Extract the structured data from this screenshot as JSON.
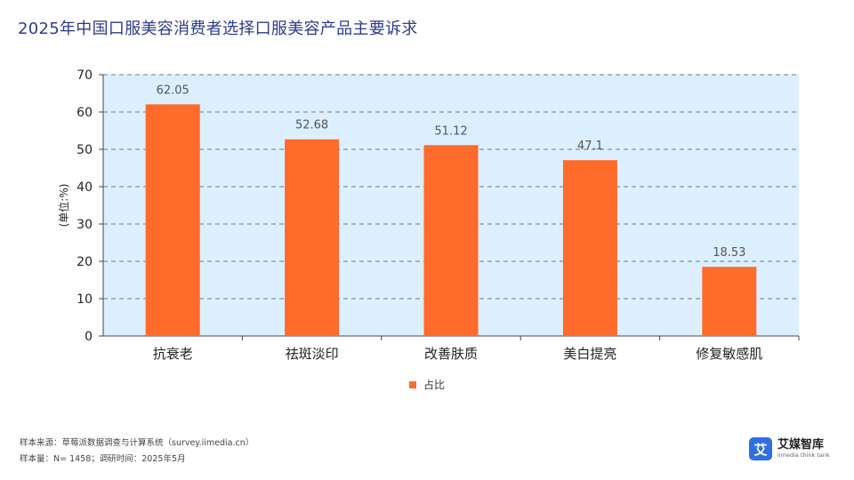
{
  "title": "2025年中国口服美容消费者选择口服美容产品主要诉求",
  "chart_data": {
    "type": "bar",
    "categories": [
      "抗衰老",
      "祛斑淡印",
      "改善肤质",
      "美白提亮",
      "修复敏感肌"
    ],
    "series": [
      {
        "name": "占比",
        "values": [
          62.05,
          52.68,
          51.12,
          47.1,
          18.53
        ],
        "color": "#ff6b2b"
      }
    ],
    "value_labels": [
      "62.05",
      "52.68",
      "51.12",
      "47.1",
      "18.53"
    ],
    "ylabel": "(单位:%)",
    "ylim": [
      0,
      70
    ],
    "yticks": [
      0,
      10,
      20,
      30,
      40,
      50,
      60,
      70
    ],
    "ytick_labels": [
      "0",
      "10",
      "20",
      "30",
      "40",
      "50",
      "60",
      "70"
    ],
    "grid": true,
    "plot_background": "#dcefff",
    "legend_position": "bottom"
  },
  "footer": {
    "source": "样本来源：草莓派数据调查与计算系统（survey.iimedia.cn）",
    "sample": "样本量：N= 1458；调研时间：2025年5月"
  },
  "logo": {
    "icon": "艾",
    "name": "艾媒智库",
    "tagline": "iimedia think tank"
  }
}
